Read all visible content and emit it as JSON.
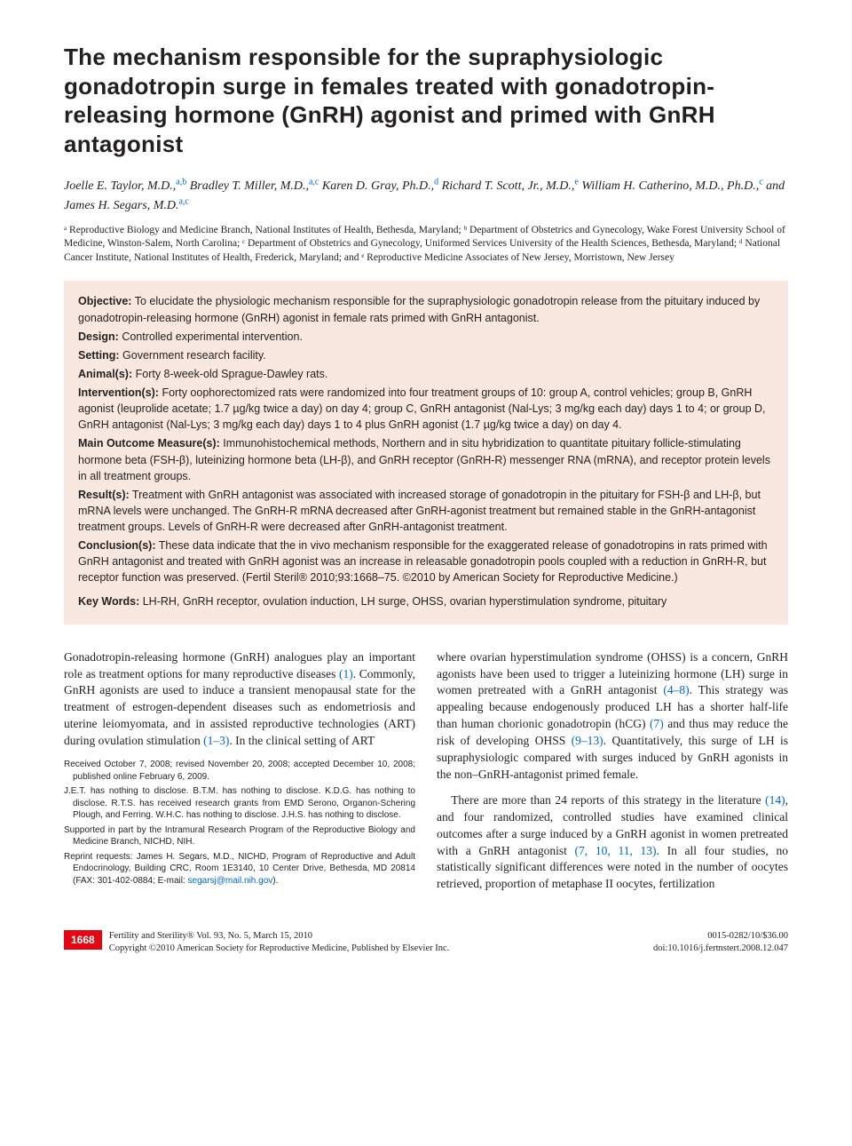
{
  "title": "The mechanism responsible for the supraphysiologic gonadotropin surge in females treated with gonadotropin-releasing hormone (GnRH) agonist and primed with GnRH antagonist",
  "authors": [
    {
      "name": "Joelle E. Taylor, M.D.,",
      "sup": "a,b"
    },
    {
      "name": "Bradley T. Miller, M.D.,",
      "sup": "a,c"
    },
    {
      "name": "Karen D. Gray, Ph.D.,",
      "sup": "d"
    },
    {
      "name": "Richard T. Scott, Jr., M.D.,",
      "sup": "e"
    },
    {
      "name": "William H. Catherino, M.D., Ph.D.,",
      "sup": "c"
    },
    {
      "name": "and James H. Segars, M.D.",
      "sup": "a,c"
    }
  ],
  "affiliations": "ᵃ Reproductive Biology and Medicine Branch, National Institutes of Health, Bethesda, Maryland; ᵇ Department of Obstetrics and Gynecology, Wake Forest University School of Medicine, Winston-Salem, North Carolina; ᶜ Department of Obstetrics and Gynecology, Uniformed Services University of the Health Sciences, Bethesda, Maryland; ᵈ National Cancer Institute, National Institutes of Health, Frederick, Maryland; and ᵉ Reproductive Medicine Associates of New Jersey, Morristown, New Jersey",
  "abstract": {
    "objective": {
      "label": "Objective:",
      "text": "To elucidate the physiologic mechanism responsible for the supraphysiologic gonadotropin release from the pituitary induced by gonadotropin-releasing hormone (GnRH) agonist in female rats primed with GnRH antagonist."
    },
    "design": {
      "label": "Design:",
      "text": "Controlled experimental intervention."
    },
    "setting": {
      "label": "Setting:",
      "text": "Government research facility."
    },
    "animals": {
      "label": "Animal(s):",
      "text": "Forty 8-week-old Sprague-Dawley rats."
    },
    "interventions": {
      "label": "Intervention(s):",
      "text": "Forty oophorectomized rats were randomized into four treatment groups of 10: group A, control vehicles; group B, GnRH agonist (leuprolide acetate; 1.7 µg/kg twice a day) on day 4; group C, GnRH antagonist (Nal-Lys; 3 mg/kg each day) days 1 to 4; or group D, GnRH antagonist (Nal-Lys; 3 mg/kg each day) days 1 to 4 plus GnRH agonist (1.7 µg/kg twice a day) on day 4."
    },
    "outcomes": {
      "label": "Main Outcome Measure(s):",
      "text": "Immunohistochemical methods, Northern and in situ hybridization to quantitate pituitary follicle-stimulating hormone beta (FSH-β), luteinizing hormone beta (LH-β), and GnRH receptor (GnRH-R) messenger RNA (mRNA), and receptor protein levels in all treatment groups."
    },
    "results": {
      "label": "Result(s):",
      "text": "Treatment with GnRH antagonist was associated with increased storage of gonadotropin in the pituitary for FSH-β and LH-β, but mRNA levels were unchanged. The GnRH-R mRNA decreased after GnRH-agonist treatment but remained stable in the GnRH-antagonist treatment groups. Levels of GnRH-R were decreased after GnRH-antagonist treatment."
    },
    "conclusions": {
      "label": "Conclusion(s):",
      "text": "These data indicate that the in vivo mechanism responsible for the exaggerated release of gonadotropins in rats primed with GnRH antagonist and treated with GnRH agonist was an increase in releasable gonadotropin pools coupled with a reduction in GnRH-R, but receptor function was preserved. (Fertil Steril® 2010;93:1668–75. ©2010 by American Society for Reproductive Medicine.)"
    },
    "keywords": {
      "label": "Key Words:",
      "text": "LH-RH, GnRH receptor, ovulation induction, LH surge, OHSS, ovarian hyperstimulation syndrome, pituitary"
    }
  },
  "body": {
    "left_p1": "Gonadotropin-releasing hormone (GnRH) analogues play an important role as treatment options for many reproductive diseases ",
    "left_ref1": "(1)",
    "left_p1b": ". Commonly, GnRH agonists are used to induce a transient menopausal state for the treatment of estrogen-dependent diseases such as endometriosis and uterine leiomyomata, and in assisted reproductive technologies (ART) during ovulation stimulation ",
    "left_ref2": "(1–3)",
    "left_p1c": ". In the clinical setting of ART",
    "right_p1": "where ovarian hyperstimulation syndrome (OHSS) is a concern, GnRH agonists have been used to trigger a luteinizing hormone (LH) surge in women pretreated with a GnRH antagonist ",
    "right_ref1": "(4–8)",
    "right_p1b": ". This strategy was appealing because endogenously produced LH has a shorter half-life than human chorionic gonadotropin (hCG) ",
    "right_ref2": "(7)",
    "right_p1c": " and thus may reduce the risk of developing OHSS ",
    "right_ref3": "(9–13)",
    "right_p1d": ". Quantitatively, this surge of LH is supraphysiologic compared with surges induced by GnRH agonists in the non–GnRH-antagonist primed female.",
    "right_p2a": "There are more than 24 reports of this strategy in the literature ",
    "right_ref4": "(14)",
    "right_p2b": ", and four randomized, controlled studies have examined clinical outcomes after a surge induced by a GnRH agonist in women pretreated with a GnRH antagonist ",
    "right_ref5": "(7, 10, 11, 13)",
    "right_p2c": ". In all four studies, no statistically significant differences were noted in the number of oocytes retrieved, proportion of metaphase II oocytes, fertilization"
  },
  "footnotes": {
    "received": "Received October 7, 2008; revised November 20, 2008; accepted December 10, 2008; published online February 6, 2009.",
    "disclose": "J.E.T. has nothing to disclose. B.T.M. has nothing to disclose. K.D.G. has nothing to disclose. R.T.S. has received research grants from EMD Serono, Organon-Schering Plough, and Ferring. W.H.C. has nothing to disclose. J.H.S. has nothing to disclose.",
    "support": "Supported in part by the Intramural Research Program of the Reproductive Biology and Medicine Branch, NICHD, NIH.",
    "reprint_a": "Reprint requests: James H. Segars, M.D., NICHD, Program of Reproductive and Adult Endocrinology, Building CRC, Room 1E3140, 10 Center Drive, Bethesda, MD 20814 (FAX: 301-402-0884; E-mail: ",
    "reprint_email": "segarsj@mail.nih.gov",
    "reprint_b": ")."
  },
  "footer": {
    "page": "1668",
    "journal": "Fertility and Sterility® Vol. 93, No. 5, March 15, 2010",
    "copyright": "Copyright ©2010 American Society for Reproductive Medicine, Published by Elsevier Inc.",
    "issn": "0015-0282/10/$36.00",
    "doi": "doi:10.1016/j.fertnstert.2008.12.047"
  },
  "colors": {
    "abstract_bg": "#f8e8e0",
    "link": "#0066cc",
    "badge": "#e30613"
  }
}
